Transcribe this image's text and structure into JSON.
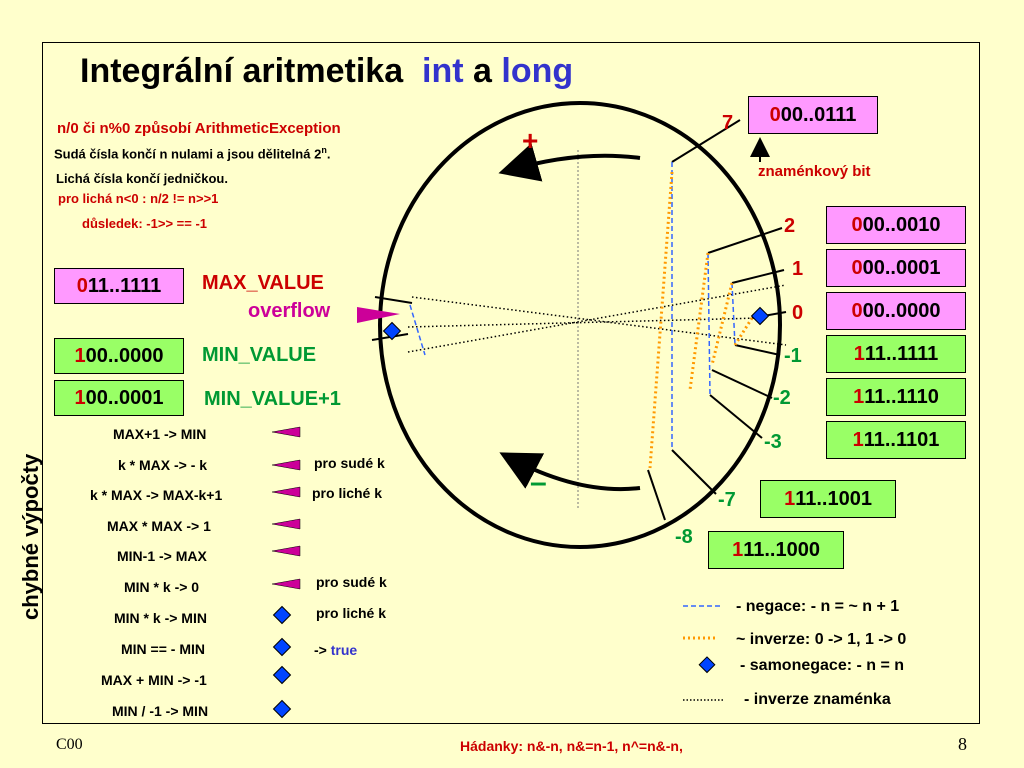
{
  "title": {
    "main": "Integrální aritmetika",
    "int": "int",
    "a": "a",
    "long": "long"
  },
  "notes": {
    "line1": "n/0  či  n%0  způsobí ArithmeticException",
    "line2a": "Sudá čísla končí  n nulami  a jsou dělitelná 2",
    "line2sup": "n",
    "line2b": ".",
    "line3": "Lichá čísla končí  jedničkou.",
    "line4": "pro lichá n<0 :  n/2  !=  n>>1",
    "line5": "důsledek:    -1>> == -1"
  },
  "left_boxes": [
    {
      "first": "0",
      "rest": "11..1111",
      "label": "MAX_VALUE"
    },
    {
      "first": "1",
      "rest": "00..0000",
      "label": "MIN_VALUE"
    },
    {
      "first": "1",
      "rest": "00..0001",
      "label": "MIN_VALUE+1"
    }
  ],
  "overflow": "overflow",
  "signs": {
    "plus": "+",
    "minus": "–"
  },
  "right_boxes": [
    {
      "first": "0",
      "rest": "00..0111"
    },
    {
      "first": "0",
      "rest": "00..0010"
    },
    {
      "first": "0",
      "rest": "00..0001"
    },
    {
      "first": "0",
      "rest": "00..0000"
    },
    {
      "first": "1",
      "rest": "11..1111"
    },
    {
      "first": "1",
      "rest": "11..1110"
    },
    {
      "first": "1",
      "rest": "11..1101"
    },
    {
      "first": "1",
      "rest": "11..1001"
    },
    {
      "first": "1",
      "rest": "11..1000"
    }
  ],
  "sign_bit": "znaménkový bit",
  "numbers": {
    "n7": "7",
    "n2": "2",
    "n1": "1",
    "n0": "0",
    "nm1": "-1",
    "nm2": "-2",
    "nm3": "-3",
    "nm7": "-7",
    "nm8": "-8"
  },
  "errors_title": "chybné  výpočty",
  "errors": [
    {
      "expr": "MAX+1 -> MIN",
      "note": ""
    },
    {
      "expr": "k * MAX -> - k",
      "note": "pro sudé k"
    },
    {
      "expr": "k * MAX -> MAX-k+1",
      "note": "pro liché k"
    },
    {
      "expr": "MAX * MAX -> 1",
      "note": ""
    },
    {
      "expr": "MIN-1 -> MAX",
      "note": ""
    },
    {
      "expr": "MIN * k -> 0",
      "note": "pro sudé k"
    },
    {
      "expr": "MIN * k -> MIN",
      "note": "pro liché k"
    },
    {
      "expr": "MIN == - MIN",
      "note": "-> "
    },
    {
      "expr": "MAX  +  MIN -> -1",
      "note": ""
    },
    {
      "expr": "MIN / -1 -> MIN",
      "note": ""
    }
  ],
  "true_word": "true",
  "legend": {
    "negation": "-  negace:    - n =  ~ n + 1",
    "inversion": "~  inverze:    0 -> 1, 1 -> 0",
    "selfneg": "-  samonegace:    - n = n",
    "signinv": "-  inverze znaménka"
  },
  "footer": {
    "left": "C00",
    "center": "Hádanky:     n&-n, n&=n-1,  n^=n&-n,",
    "page": "8"
  },
  "colors": {
    "bg": "#ffffcc",
    "pink": "#ff99ff",
    "green": "#99ff66",
    "red": "#cc0000",
    "dkgreen": "#009933",
    "blue": "#3333cc",
    "magenta": "#cc0099",
    "orange": "#ff9900",
    "diamond": "#0044ff"
  }
}
